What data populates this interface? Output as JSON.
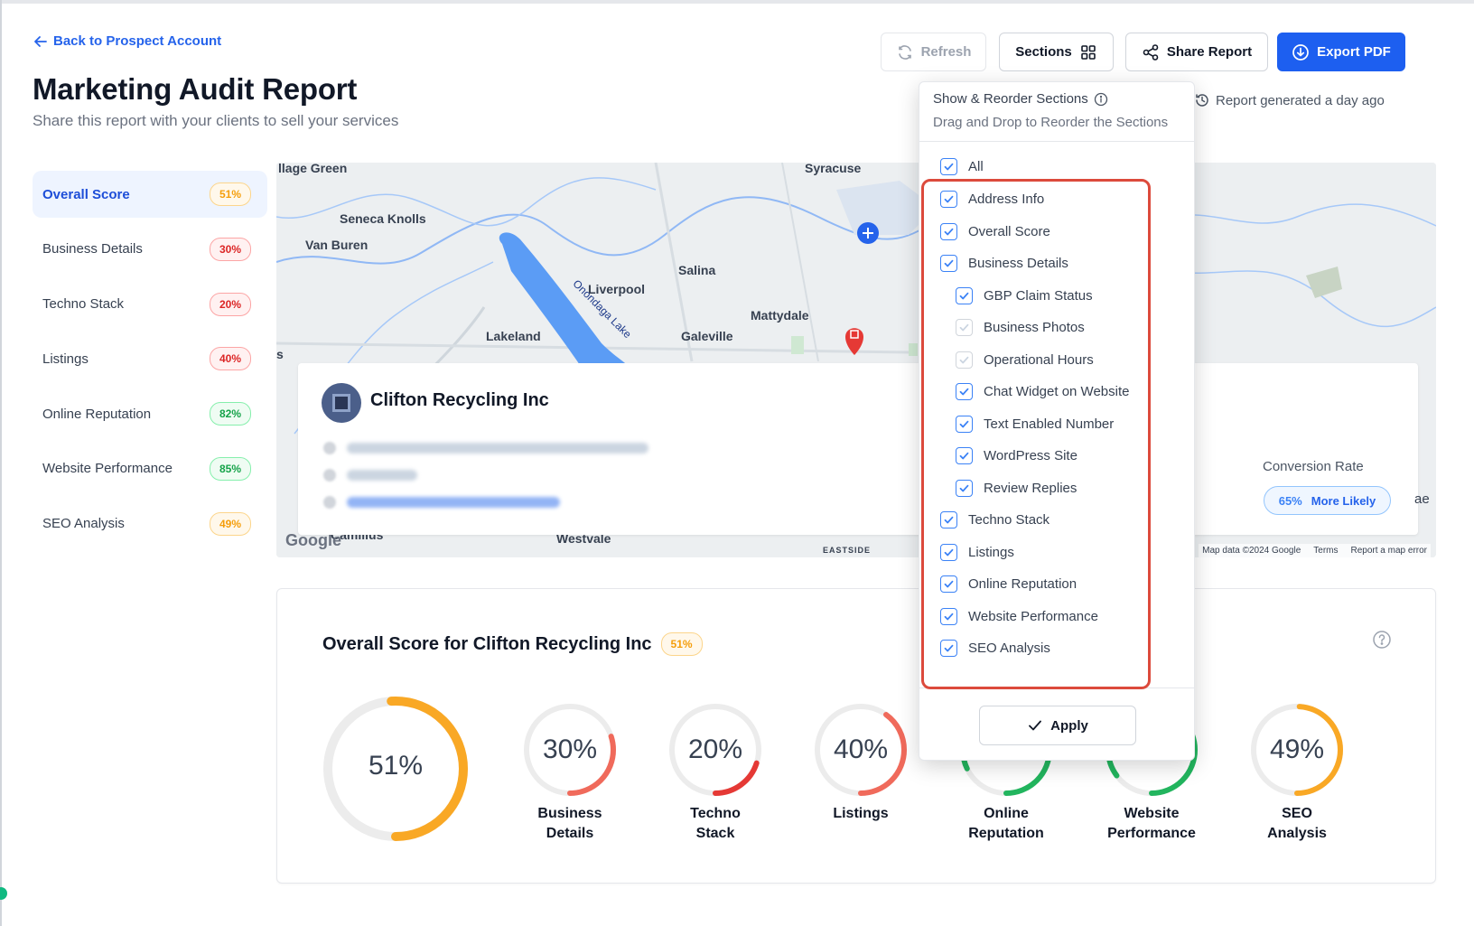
{
  "header": {
    "back_link": "Back to Prospect Account",
    "title": "Marketing Audit Report",
    "subtitle": "Share this report with your clients to sell your services",
    "report_generated": "Report generated a day ago"
  },
  "toolbar": {
    "refresh": "Refresh",
    "sections": "Sections",
    "share": "Share Report",
    "export": "Export PDF"
  },
  "sidebar": {
    "items": [
      {
        "label": "Overall Score",
        "score": "51%"
      },
      {
        "label": "Business Details",
        "score": "30%"
      },
      {
        "label": "Techno Stack",
        "score": "20%"
      },
      {
        "label": "Listings",
        "score": "40%"
      },
      {
        "label": "Online Reputation",
        "score": "82%"
      },
      {
        "label": "Website Performance",
        "score": "85%"
      },
      {
        "label": "SEO Analysis",
        "score": "49%"
      }
    ]
  },
  "map": {
    "labels": [
      "llage Green",
      "Syracuse",
      "Seneca Knolls",
      "Van Buren",
      "Salina",
      "Liverpool",
      "Onondaga Lake",
      "Mattydale",
      "Lakeland",
      "Galeville",
      "Westvale",
      "EASTSIDE",
      "Camillus",
      "s"
    ],
    "footer": [
      "Map data ©2024 Google",
      "Terms",
      "Report a map error"
    ],
    "google_logo": "Google"
  },
  "business": {
    "name": "Clifton Recycling Inc",
    "conversion_label": "Conversion Rate",
    "conversion_value": "65%",
    "conversion_text": "More Likely",
    "edge_text": "ae"
  },
  "score_card": {
    "title": "Overall Score for Clifton Recycling Inc",
    "badge": "51%",
    "main_value": "51%",
    "main_percent": 51,
    "gauges": [
      {
        "value": "30%",
        "percent": 30,
        "label1": "Business",
        "label2": "Details",
        "color": "#f06a5b"
      },
      {
        "value": "20%",
        "percent": 20,
        "label1": "Techno",
        "label2": "Stack",
        "color": "#e53935"
      },
      {
        "value": "40%",
        "percent": 40,
        "label1": "Listings",
        "label2": "",
        "color": "#f06a5b"
      },
      {
        "value": "82%",
        "percent": 82,
        "label1": "Online",
        "label2": "Reputation",
        "color": "#22b55e"
      },
      {
        "value": "85%",
        "percent": 85,
        "label1": "Website",
        "label2": "Performance",
        "color": "#22b55e"
      },
      {
        "value": "49%",
        "percent": 49,
        "label1": "SEO",
        "label2": "Analysis",
        "color": "#f9a825"
      }
    ]
  },
  "dropdown": {
    "title": "Show & Reorder Sections",
    "subtitle": "Drag and Drop to Reorder the Sections",
    "all": "All",
    "items": [
      {
        "label": "Address Info",
        "indent": false,
        "checked": true
      },
      {
        "label": "Overall Score",
        "indent": false,
        "checked": true
      },
      {
        "label": "Business Details",
        "indent": false,
        "checked": true
      },
      {
        "label": "GBP Claim Status",
        "indent": true,
        "checked": true
      },
      {
        "label": "Business Photos",
        "indent": true,
        "checked": false
      },
      {
        "label": "Operational Hours",
        "indent": true,
        "checked": false
      },
      {
        "label": "Chat Widget on Website",
        "indent": true,
        "checked": true
      },
      {
        "label": "Text Enabled Number",
        "indent": true,
        "checked": true
      },
      {
        "label": "WordPress Site",
        "indent": true,
        "checked": true
      },
      {
        "label": "Review Replies",
        "indent": true,
        "checked": true
      },
      {
        "label": "Techno Stack",
        "indent": false,
        "checked": true
      },
      {
        "label": "Listings",
        "indent": false,
        "checked": true
      },
      {
        "label": "Online Reputation",
        "indent": false,
        "checked": true
      },
      {
        "label": "Website Performance",
        "indent": false,
        "checked": true
      },
      {
        "label": "SEO Analysis",
        "indent": false,
        "checked": true
      }
    ],
    "apply": "Apply"
  },
  "colors": {
    "accent": "#1d5ff0",
    "highlight": "#dc4a3c",
    "main_gauge": "#f9a825"
  }
}
